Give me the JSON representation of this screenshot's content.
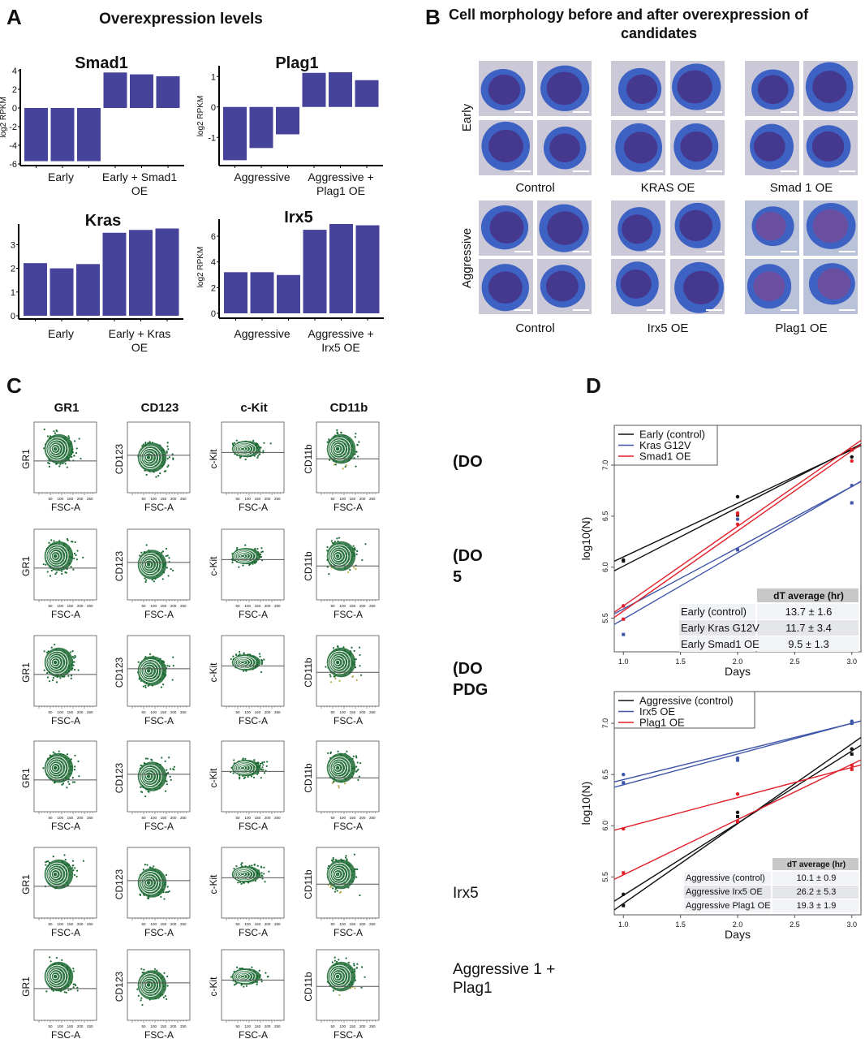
{
  "panel_labels": {
    "a": "A",
    "b": "B",
    "c": "C",
    "d": "D"
  },
  "panel_a": {
    "title": "Overexpression levels"
  },
  "panel_b": {
    "title_line1": "Cell morphology before and after overexpression of",
    "title_line2": "candidates",
    "row_labels": [
      "Early",
      "Aggressive"
    ],
    "groups": [
      [
        "Control",
        "KRAS OE",
        "Smad 1 OE"
      ],
      [
        "Control",
        "Irx5 OE",
        "Plag1 OE"
      ]
    ]
  },
  "panel_c": {
    "columns": [
      "GR1",
      "CD123",
      "c-Kit",
      "CD11b"
    ],
    "x_label": "FSC-A",
    "x_ticks": [
      "50",
      "100",
      "150",
      "200",
      "250"
    ],
    "row_labels": [
      [
        "(DO"
      ],
      [
        "(DO",
        "5"
      ],
      [
        "(DO",
        "PDG"
      ],
      [],
      [
        "Irx5"
      ],
      [
        "Aggressive 1 +",
        "Plag1"
      ]
    ]
  },
  "colors": {
    "bar": "#45449a",
    "control": "#111111",
    "blue": "#3f55a8",
    "red": "#e0202a",
    "flow_green": "#1d6b34"
  },
  "chart_data": [
    {
      "type": "bar",
      "title": "Smad1",
      "ylabel": "log2 RPKM",
      "ylim": [
        -6,
        4
      ],
      "yticks": [
        -6,
        -4,
        -2,
        0,
        2,
        4
      ],
      "groups": [
        [
          "Early"
        ],
        [
          "Early + Smad1",
          "OE"
        ]
      ],
      "values": [
        -5.7,
        -5.7,
        -5.7,
        3.8,
        3.6,
        3.4
      ]
    },
    {
      "type": "bar",
      "title": "Plag1",
      "ylabel": "log2 RPKM",
      "ylim": [
        -1.9,
        1.3
      ],
      "yticks": [
        -1,
        0,
        1
      ],
      "groups": [
        [
          "Aggressive"
        ],
        [
          "Aggressive +",
          "Plag1 OE"
        ]
      ],
      "values": [
        -1.75,
        -1.35,
        -0.9,
        1.12,
        1.14,
        0.88
      ]
    },
    {
      "type": "bar",
      "title": "Kras",
      "ylabel": "",
      "ylim": [
        0,
        3.8
      ],
      "yticks": [
        0,
        1,
        2,
        3
      ],
      "groups": [
        [
          "Early"
        ],
        [
          "Early + Kras",
          "OE"
        ]
      ],
      "values": [
        2.22,
        2.0,
        2.18,
        3.5,
        3.62,
        3.68
      ]
    },
    {
      "type": "bar",
      "title": "Irx5",
      "ylabel": "log2 RPKM",
      "ylim": [
        0,
        7.2
      ],
      "yticks": [
        0,
        2,
        4,
        6
      ],
      "groups": [
        [
          "Aggressive"
        ],
        [
          "Aggressive +",
          "Irx5 OE"
        ]
      ],
      "values": [
        3.2,
        3.2,
        2.98,
        6.5,
        6.95,
        6.85
      ]
    },
    {
      "type": "line",
      "xlabel": "Days",
      "ylabel": "log10(N)",
      "xlim": [
        0.92,
        3.08
      ],
      "ylim": [
        5.17,
        7.39
      ],
      "xticks": [
        "1.0",
        "1.5",
        "2.0",
        "2.5",
        "3.0"
      ],
      "yticks": [
        "5.5",
        "6.0",
        "6.5",
        "7.0"
      ],
      "legend": "top-left",
      "series": [
        {
          "name": "Early (control)",
          "color": "#111111",
          "points": [
            [
              1,
              6.07
            ],
            [
              1,
              6.06
            ],
            [
              2,
              6.69
            ],
            [
              2,
              6.51
            ],
            [
              3,
              7.08
            ],
            [
              3,
              7.15
            ]
          ],
          "fits": [
            [
              6.1,
              7.15
            ],
            [
              6.01,
              7.16
            ]
          ]
        },
        {
          "name": "Kras G12V",
          "color": "#3f55a8",
          "points": [
            [
              1,
              5.62
            ],
            [
              1,
              5.34
            ],
            [
              2,
              6.47
            ],
            [
              2,
              6.17
            ],
            [
              3,
              6.8
            ],
            [
              3,
              6.63
            ]
          ],
          "fits": [
            [
              5.59,
              6.79
            ],
            [
              5.49,
              6.79
            ]
          ]
        },
        {
          "name": "Smad1 OE",
          "color": "#e0202a",
          "points": [
            [
              1,
              5.62
            ],
            [
              1,
              5.49
            ],
            [
              2,
              6.53
            ],
            [
              2,
              6.52
            ],
            [
              2,
              6.42
            ],
            [
              3,
              7.15
            ],
            [
              3,
              7.04
            ]
          ],
          "fits": [
            [
              5.62,
              7.18
            ],
            [
              5.57,
              7.14
            ]
          ]
        }
      ],
      "table": {
        "header": "dT average (hr)",
        "rows": [
          {
            "label": "Early (control)",
            "value": "13.7 ± 1.6",
            "color": "#111111"
          },
          {
            "label": "Early Kras G12V",
            "value": "11.7 ± 3.4",
            "color": "#3f55a8"
          },
          {
            "label": "Early Smad1 OE",
            "value": "9.5 ± 1.3",
            "color": "#e0202a"
          }
        ]
      }
    },
    {
      "type": "line",
      "xlabel": "Days",
      "ylabel": "log10(N)",
      "xlim": [
        0.92,
        3.08
      ],
      "ylim": [
        5.13,
        7.31
      ],
      "xticks": [
        "1.0",
        "1.5",
        "2.0",
        "2.5",
        "3.0"
      ],
      "yticks": [
        "5.5",
        "6.0",
        "6.5",
        "7.0"
      ],
      "legend": "top-left",
      "series": [
        {
          "name": "Aggressive (control)",
          "color": "#111111",
          "points": [
            [
              1,
              5.33
            ],
            [
              1,
              5.22
            ],
            [
              2,
              6.13
            ],
            [
              2,
              6.09
            ],
            [
              3,
              6.75
            ],
            [
              3,
              6.7
            ]
          ],
          "fits": [
            [
              5.24,
              6.8
            ],
            [
              5.32,
              6.73
            ]
          ]
        },
        {
          "name": "Irx5 OE",
          "color": "#3f55a8",
          "points": [
            [
              1,
              6.5
            ],
            [
              1,
              6.42
            ],
            [
              2,
              6.66
            ],
            [
              2,
              6.64
            ],
            [
              3,
              7.02
            ],
            [
              3,
              7.0
            ]
          ],
          "fits": [
            [
              6.45,
              7.0
            ],
            [
              6.4,
              7.0
            ]
          ]
        },
        {
          "name": "Plag1 OE",
          "color": "#e0202a",
          "points": [
            [
              1,
              5.97
            ],
            [
              1,
              5.54
            ],
            [
              2,
              6.31
            ],
            [
              2,
              6.04
            ],
            [
              3,
              6.59
            ],
            [
              3,
              6.55
            ]
          ],
          "fits": [
            [
              5.98,
              6.57
            ],
            [
              5.52,
              6.6
            ]
          ]
        }
      ],
      "table": {
        "header": "dT average (hr)",
        "rows": [
          {
            "label": "Aggressive (control)",
            "value": "10.1 ± 0.9",
            "color": "#111111"
          },
          {
            "label": "Aggressive Irx5 OE",
            "value": "26.2 ± 5.3",
            "color": "#3f55a8"
          },
          {
            "label": "Aggressive Plag1 OE",
            "value": "19.3 ± 1.9",
            "color": "#e0202a"
          }
        ]
      }
    }
  ]
}
